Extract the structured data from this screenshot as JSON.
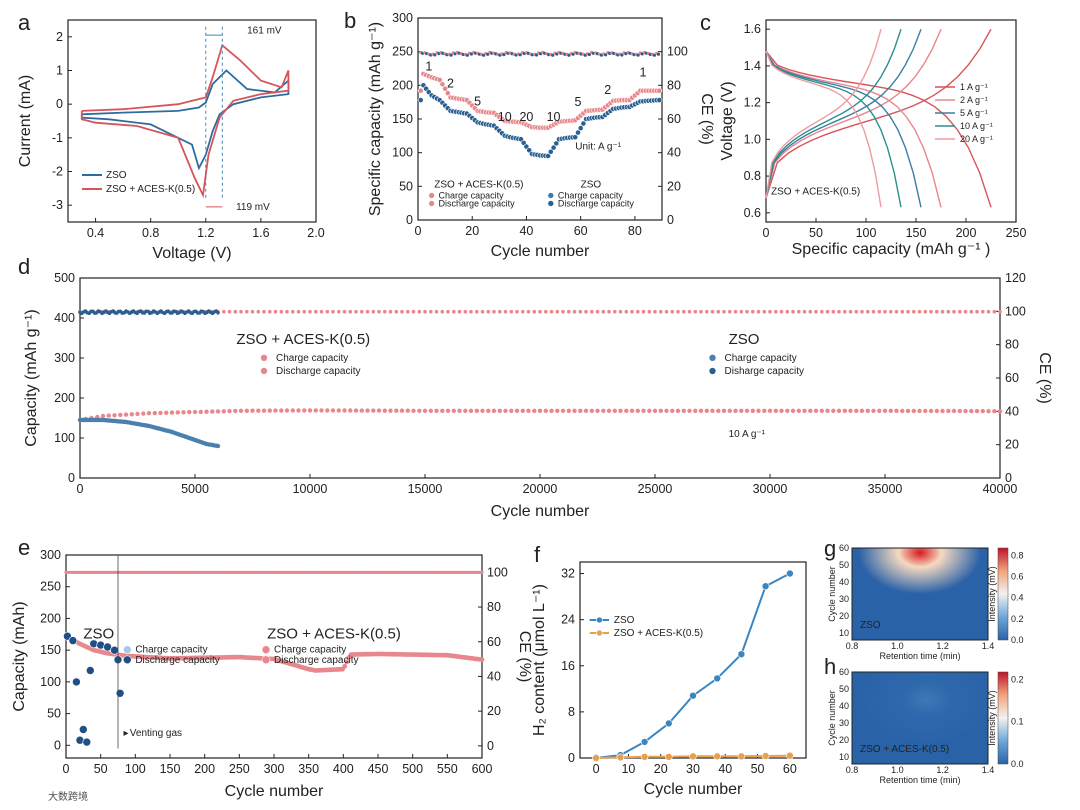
{
  "watermark": "大数跨境",
  "chart_data": [
    {
      "panel": "a",
      "type": "line",
      "xlabel": "Voltage (V)",
      "ylabel": "Current (mA)",
      "xlim": [
        0.2,
        2.0
      ],
      "ylim": [
        -3.5,
        2.5
      ],
      "xticks": [
        "0.4",
        "0.8",
        "1.2",
        "1.6",
        "2.0"
      ],
      "yticks": [
        "-3",
        "-2",
        "-1",
        "0",
        "1",
        "2"
      ],
      "annotations": [
        "161 mV",
        "119 mV"
      ],
      "series": [
        {
          "name": "ZSO",
          "color": "#2e6ca0",
          "x": [
            0.3,
            0.6,
            1.0,
            1.15,
            1.2,
            1.25,
            1.35,
            1.5,
            1.7,
            1.8,
            1.8,
            1.6,
            1.4,
            1.3,
            1.25,
            1.2,
            1.15,
            1.1,
            0.8,
            0.5,
            0.3,
            0.3
          ],
          "y": [
            -0.3,
            -0.25,
            -0.2,
            -0.1,
            0.05,
            0.6,
            1.0,
            0.45,
            0.35,
            0.7,
            0.3,
            0.2,
            0.0,
            -0.3,
            -0.8,
            -1.5,
            -1.9,
            -1.2,
            -0.6,
            -0.45,
            -0.4,
            -0.3
          ]
        },
        {
          "name": "ZSO + ACES-K(0.5)",
          "color": "#d9545a",
          "x": [
            0.3,
            0.6,
            1.0,
            1.2,
            1.25,
            1.32,
            1.45,
            1.6,
            1.75,
            1.8,
            1.8,
            1.6,
            1.4,
            1.3,
            1.22,
            1.18,
            1.12,
            1.0,
            0.7,
            0.4,
            0.3,
            0.3
          ],
          "y": [
            -0.2,
            -0.15,
            0.0,
            0.2,
            0.8,
            1.75,
            1.3,
            0.7,
            0.5,
            1.0,
            0.4,
            0.3,
            0.1,
            -0.4,
            -1.5,
            -2.7,
            -2.2,
            -1.0,
            -0.65,
            -0.55,
            -0.45,
            -0.2
          ]
        }
      ]
    },
    {
      "panel": "b",
      "type": "scatter",
      "xlabel": "Cycle number",
      "ylabel": "Specific capacity (mAh g⁻¹)",
      "y2label": "CE (%)",
      "xlim": [
        0,
        90
      ],
      "ylim": [
        0,
        300
      ],
      "y2lim": [
        0,
        120
      ],
      "xticks": [
        "0",
        "20",
        "40",
        "60",
        "80"
      ],
      "yticks": [
        "0",
        "50",
        "100",
        "150",
        "200",
        "250",
        "300"
      ],
      "y2ticks": [
        "0",
        "20",
        "40",
        "60",
        "80",
        "100"
      ],
      "rate_labels": [
        {
          "text": "1",
          "x": 4,
          "y": 222
        },
        {
          "text": "2",
          "x": 12,
          "y": 197
        },
        {
          "text": "5",
          "x": 22,
          "y": 170
        },
        {
          "text": "10",
          "x": 32,
          "y": 147
        },
        {
          "text": "20",
          "x": 40,
          "y": 147
        },
        {
          "text": "10",
          "x": 50,
          "y": 147
        },
        {
          "text": "5",
          "x": 59,
          "y": 169
        },
        {
          "text": "2",
          "x": 70,
          "y": 187
        },
        {
          "text": "1",
          "x": 83,
          "y": 213
        }
      ],
      "unit_label": "Unit: A g⁻¹",
      "annotations": [
        "ZSO + ACES-K(0.5)",
        "ZSO"
      ],
      "legend": [
        "Charge capacity",
        "Discharge capacity",
        "Charge capacity",
        "Discharge capacity"
      ],
      "series": [
        {
          "name": "ZSO + ACES-K(0.5)",
          "color": "#e8878c",
          "x": [
            2,
            5,
            8,
            12,
            15,
            18,
            22,
            25,
            28,
            32,
            35,
            38,
            42,
            45,
            48,
            52,
            55,
            58,
            62,
            65,
            68,
            72,
            75,
            78,
            82,
            85,
            88
          ],
          "y": [
            215,
            210,
            206,
            180,
            178,
            176,
            160,
            158,
            157,
            145,
            144,
            143,
            136,
            135,
            135,
            144,
            145,
            146,
            160,
            161,
            162,
            175,
            176,
            176,
            190,
            190,
            190
          ]
        },
        {
          "name": "ZSO",
          "color": "#2a5f92",
          "x": [
            2,
            5,
            8,
            12,
            15,
            18,
            22,
            25,
            28,
            32,
            35,
            38,
            42,
            45,
            48,
            52,
            55,
            58,
            62,
            65,
            68,
            72,
            75,
            78,
            82,
            85,
            88
          ],
          "y": [
            200,
            185,
            178,
            162,
            160,
            158,
            145,
            142,
            140,
            125,
            122,
            120,
            98,
            96,
            95,
            120,
            122,
            123,
            150,
            152,
            153,
            165,
            167,
            168,
            176,
            177,
            178
          ]
        }
      ]
    },
    {
      "panel": "c",
      "type": "line",
      "xlabel": "Specific capacity (mAh g⁻¹ )",
      "ylabel": "Voltage (V)",
      "xlim": [
        0,
        250
      ],
      "ylim": [
        0.55,
        1.65
      ],
      "xticks": [
        "0",
        "50",
        "100",
        "150",
        "200",
        "250"
      ],
      "yticks": [
        "0.6",
        "0.8",
        "1.0",
        "1.2",
        "1.4",
        "1.6"
      ],
      "annotation": "ZSO + ACES-K(0.5)",
      "legend": [
        "1 A g⁻¹",
        "2 A g⁻¹",
        "5 A g⁻¹",
        "10 A g⁻¹",
        "20 A g⁻¹"
      ],
      "series": [
        {
          "name": "1 A g⁻¹",
          "color": "#d9545a",
          "cap": 225
        },
        {
          "name": "2 A g⁻¹",
          "color": "#e8878c",
          "cap": 175
        },
        {
          "name": "5 A g⁻¹",
          "color": "#3a7fa3",
          "cap": 155
        },
        {
          "name": "10 A g⁻¹",
          "color": "#2a8f8f",
          "cap": 135
        },
        {
          "name": "20 A g⁻¹",
          "color": "#ef9aa0",
          "cap": 115
        }
      ]
    },
    {
      "panel": "d",
      "type": "scatter",
      "xlabel": "Cycle number",
      "ylabel": "Capacity (mAh g⁻¹)",
      "y2label": "CE (%)",
      "xlim": [
        0,
        40000
      ],
      "ylim": [
        0,
        500
      ],
      "y2lim": [
        0,
        120
      ],
      "xticks": [
        "0",
        "5000",
        "10000",
        "15000",
        "20000",
        "25000",
        "30000",
        "35000",
        "40000"
      ],
      "yticks": [
        "0",
        "100",
        "200",
        "300",
        "400",
        "500"
      ],
      "y2ticks": [
        "0",
        "20",
        "40",
        "60",
        "80",
        "100",
        "120"
      ],
      "annotations": [
        "ZSO + ACES-K(0.5)",
        "ZSO",
        "10 A g⁻¹"
      ],
      "legend": [
        "Charge capacity",
        "Discharge capacity",
        "Charge capacity",
        "Disharge capacity"
      ],
      "series": [
        {
          "name": "ZSO + ACES-K(0.5)",
          "color": "#e8878c",
          "x": [
            0,
            1000,
            3000,
            5000,
            7000,
            10000,
            15000,
            20000,
            25000,
            30000,
            35000,
            40000
          ],
          "y": [
            145,
            155,
            162,
            165,
            168,
            169,
            168,
            168,
            168,
            168,
            168,
            167
          ]
        },
        {
          "name": "ZSO",
          "color": "#2a5f92",
          "x": [
            0,
            1000,
            2000,
            3000,
            4000,
            5000,
            5500,
            6000
          ],
          "y": [
            145,
            145,
            140,
            130,
            115,
            95,
            85,
            80
          ]
        },
        {
          "name": "CE ZSO + ACES-K(0.5)",
          "color": "#e8878c",
          "x": [
            0,
            40000
          ],
          "y2": [
            99.8,
            99.8
          ]
        },
        {
          "name": "CE ZSO",
          "color": "#2a5f92",
          "x": [
            0,
            6000
          ],
          "y2": [
            99.5,
            99.5
          ]
        }
      ]
    },
    {
      "panel": "e",
      "type": "scatter",
      "xlabel": "Cycle number",
      "ylabel": "Capacity (mAh)",
      "y2label": "CE (%)",
      "xlim": [
        0,
        600
      ],
      "ylim": [
        -20,
        300
      ],
      "y2lim": [
        -7,
        110
      ],
      "xticks": [
        "0",
        "50",
        "100",
        "150",
        "200",
        "250",
        "300",
        "350",
        "400",
        "450",
        "500",
        "550",
        "600"
      ],
      "yticks": [
        "0",
        "50",
        "100",
        "150",
        "200",
        "250",
        "300"
      ],
      "y2ticks": [
        "0",
        "20",
        "40",
        "60",
        "80",
        "100"
      ],
      "annotations": [
        "ZSO",
        "ZSO + ACES-K(0.5)",
        "Venting gas"
      ],
      "legend": [
        "Charge capacity",
        "Discharge capacity",
        "Charge capacity",
        "Discharge capacity"
      ],
      "series": [
        {
          "name": "ZSO + ACES-K(0.5)",
          "color": "#e8878c",
          "x": [
            0,
            20,
            40,
            60,
            80,
            100,
            150,
            200,
            250,
            300,
            350,
            360,
            400,
            410,
            450,
            500,
            550,
            600
          ],
          "y": [
            172,
            160,
            150,
            145,
            142,
            140,
            137,
            138,
            139,
            136,
            120,
            118,
            120,
            143,
            144,
            143,
            142,
            135
          ]
        },
        {
          "name": "ZSO",
          "color": "#1f4f85",
          "x": [
            2,
            10,
            15,
            20,
            25,
            30,
            35,
            40,
            50,
            60,
            70,
            75,
            78
          ],
          "y": [
            172,
            165,
            100,
            8,
            25,
            5,
            118,
            160,
            158,
            155,
            150,
            135,
            82
          ]
        }
      ]
    },
    {
      "panel": "f",
      "type": "line",
      "xlabel": "Cycle number",
      "ylabel": "H₂ content (μmol L⁻¹)",
      "xlim": [
        -5,
        65
      ],
      "ylim": [
        0,
        34
      ],
      "xticks": [
        "0",
        "10",
        "20",
        "30",
        "40",
        "50",
        "60"
      ],
      "yticks": [
        "0",
        "8",
        "16",
        "24",
        "32"
      ],
      "series": [
        {
          "name": "ZSO",
          "color": "#3a86c0",
          "x": [
            0,
            7.5,
            15,
            22.5,
            30,
            37.5,
            45,
            52.5,
            60
          ],
          "y": [
            0,
            0.5,
            2.8,
            6,
            10.8,
            13.8,
            18,
            29.8,
            32
          ]
        },
        {
          "name": "ZSO + ACES-K(0.5)",
          "color": "#e8a050",
          "x": [
            0,
            7.5,
            15,
            22.5,
            30,
            37.5,
            45,
            52.5,
            60
          ],
          "y": [
            0,
            0.1,
            0.2,
            0.2,
            0.3,
            0.3,
            0.3,
            0.35,
            0.4
          ]
        }
      ]
    },
    {
      "panel": "g",
      "type": "heatmap",
      "xlabel": "Retention time (min)",
      "ylabel": "Cycle number",
      "cbar_label": "Intensity (mV)",
      "xticks": [
        "0.8",
        "1.0",
        "1.2",
        "1.4"
      ],
      "yticks": [
        "10",
        "20",
        "30",
        "40",
        "50",
        "60"
      ],
      "cbar_ticks": [
        "0.0",
        "0.2",
        "0.4",
        "0.6",
        "0.8"
      ],
      "label": "ZSO"
    },
    {
      "panel": "h",
      "type": "heatmap",
      "xlabel": "Retention time (min)",
      "ylabel": "Cycle number",
      "cbar_label": "Intensity (mV)",
      "xticks": [
        "0.8",
        "1.0",
        "1.2",
        "1.4"
      ],
      "yticks": [
        "10",
        "20",
        "30",
        "40",
        "50",
        "60"
      ],
      "cbar_ticks": [
        "0.0",
        "0.1",
        "0.2"
      ],
      "label": "ZSO + ACES-K(0.5)"
    }
  ]
}
